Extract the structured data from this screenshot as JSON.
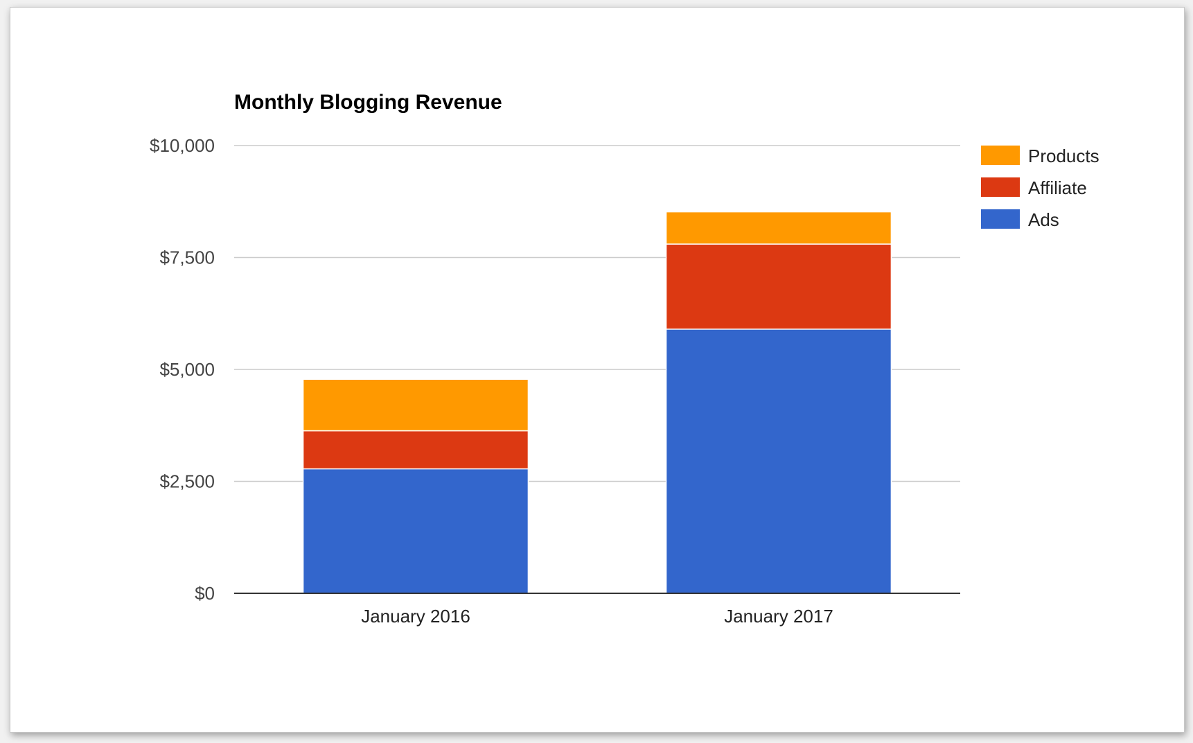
{
  "chart_data": {
    "type": "bar",
    "stacked": true,
    "title": "Monthly Blogging Revenue",
    "xlabel": "",
    "ylabel": "",
    "categories": [
      "January 2016",
      "January 2017"
    ],
    "series": [
      {
        "name": "Ads",
        "color": "#3366cc",
        "values": [
          2780,
          5900
        ]
      },
      {
        "name": "Affiliate",
        "color": "#dc3912",
        "values": [
          850,
          1900
        ]
      },
      {
        "name": "Products",
        "color": "#ff9900",
        "values": [
          1150,
          720
        ]
      }
    ],
    "ylim": [
      0,
      10000
    ],
    "yticks": [
      {
        "value": 0,
        "label": "$0"
      },
      {
        "value": 2500,
        "label": "$2,500"
      },
      {
        "value": 5000,
        "label": "$5,000"
      },
      {
        "value": 7500,
        "label": "$7,500"
      },
      {
        "value": 10000,
        "label": "$10,000"
      }
    ],
    "legend_order": [
      "Products",
      "Affiliate",
      "Ads"
    ],
    "legend_position": "right",
    "grid": true
  }
}
